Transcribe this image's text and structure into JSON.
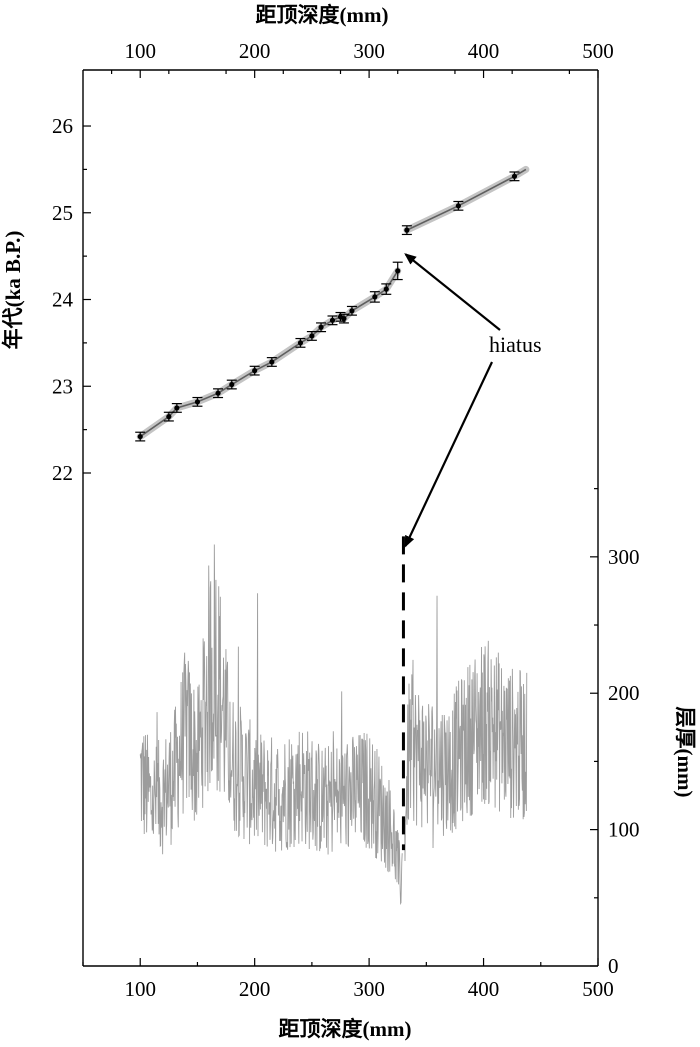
{
  "chart_data": [
    {
      "type": "line",
      "xlabel": "距顶深度(mm)",
      "ylabel": "年代(ka B.P.)",
      "xlim": [
        50,
        500
      ],
      "ylim": [
        22,
        26.3
      ],
      "xticks": [
        "100",
        "200",
        "300",
        "400",
        "500"
      ],
      "yticks": [
        "22",
        "23",
        "24",
        "25",
        "26"
      ],
      "xaxis_position": "top",
      "segments": [
        {
          "x": [
            100,
            125,
            132,
            150,
            168,
            180,
            200,
            215,
            240,
            250,
            258,
            268,
            275,
            278,
            285,
            305,
            315,
            325
          ],
          "y": [
            22.42,
            22.65,
            22.75,
            22.82,
            22.92,
            23.02,
            23.18,
            23.28,
            23.5,
            23.58,
            23.68,
            23.76,
            23.8,
            23.78,
            23.87,
            24.03,
            24.12,
            24.33
          ],
          "err": [
            0.05,
            0.05,
            0.05,
            0.05,
            0.05,
            0.05,
            0.05,
            0.05,
            0.05,
            0.05,
            0.05,
            0.05,
            0.05,
            0.05,
            0.05,
            0.06,
            0.06,
            0.1
          ]
        },
        {
          "x": [
            333,
            378,
            427
          ],
          "y": [
            24.8,
            25.08,
            25.42
          ],
          "err": [
            0.05,
            0.05,
            0.05
          ]
        }
      ],
      "grid": false
    },
    {
      "type": "line",
      "xlabel": "距顶深度(mm)",
      "ylabel": "层厚(mm)",
      "xlim": [
        50,
        500
      ],
      "ylim": [
        0,
        360
      ],
      "xticks": [
        "100",
        "200",
        "300",
        "400",
        "500"
      ],
      "yticks": [
        "0",
        "100",
        "200",
        "300"
      ],
      "yaxis_position": "right",
      "x_range": [
        100,
        438
      ],
      "hiatus_depth": 330,
      "series_description_points": {
        "x": [
          100,
          110,
          120,
          130,
          140,
          150,
          160,
          165,
          170,
          180,
          200,
          220,
          240,
          260,
          280,
          300,
          320,
          328,
          335,
          350,
          370,
          390,
          400,
          410,
          420,
          438
        ],
        "y": [
          140,
          120,
          125,
          140,
          175,
          150,
          210,
          230,
          200,
          150,
          130,
          125,
          135,
          120,
          125,
          130,
          100,
          60,
          160,
          150,
          145,
          170,
          180,
          175,
          165,
          160
        ]
      },
      "grid": false
    }
  ],
  "annotation": {
    "text": "hiatus"
  },
  "colors": {
    "age_line": "#5f5f5f",
    "age_band": "#c4c4c4",
    "thickness_line": "#9c9c9c",
    "hiatus_line": "#000000"
  }
}
